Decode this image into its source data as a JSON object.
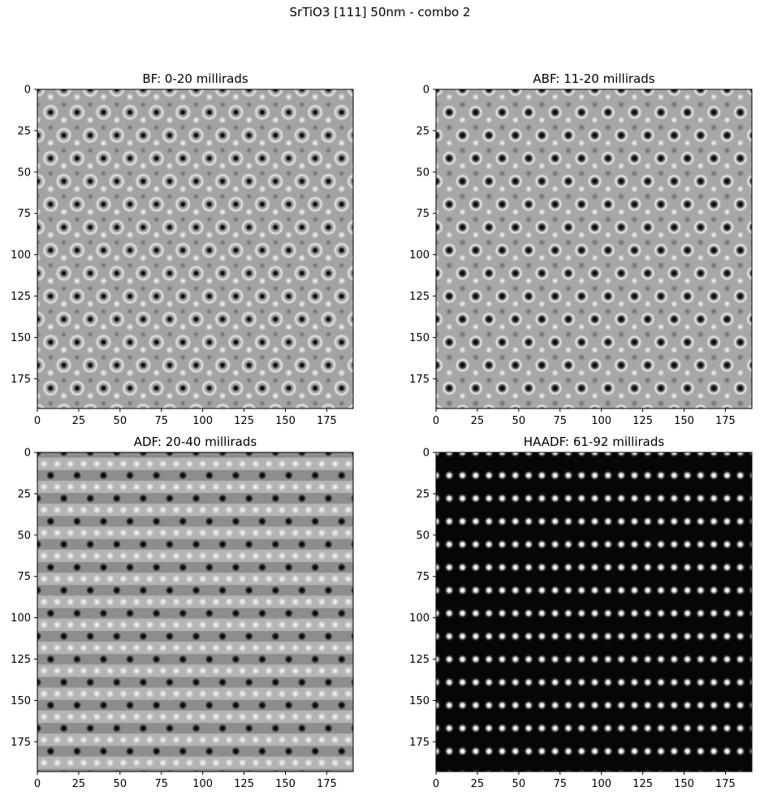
{
  "suptitle": "SrTiO3 [111] 50nm - combo 2",
  "chart_data": [
    {
      "type": "heatmap",
      "title": "BF: 0-20 millirads",
      "xlim": [
        0,
        191
      ],
      "ylim": [
        193,
        0
      ],
      "xticks": [
        0,
        25,
        50,
        75,
        100,
        125,
        150,
        175
      ],
      "yticks": [
        0,
        25,
        50,
        75,
        100,
        125,
        150,
        175
      ],
      "colormap": "grey",
      "pattern": "bf",
      "lattice_spacing": [
        16,
        13.9
      ]
    },
    {
      "type": "heatmap",
      "title": "ABF: 11-20 millirads",
      "xlim": [
        0,
        191
      ],
      "ylim": [
        193,
        0
      ],
      "xticks": [
        0,
        25,
        50,
        75,
        100,
        125,
        150,
        175
      ],
      "yticks": [
        0,
        25,
        50,
        75,
        100,
        125,
        150,
        175
      ],
      "colormap": "grey",
      "pattern": "abf",
      "lattice_spacing": [
        16,
        13.9
      ]
    },
    {
      "type": "heatmap",
      "title": "ADF: 20-40 millirads",
      "xlim": [
        0,
        191
      ],
      "ylim": [
        193,
        0
      ],
      "xticks": [
        0,
        25,
        50,
        75,
        100,
        125,
        150,
        175
      ],
      "yticks": [
        0,
        25,
        50,
        75,
        100,
        125,
        150,
        175
      ],
      "colormap": "grey",
      "pattern": "adf",
      "lattice_spacing": [
        16,
        13.9
      ]
    },
    {
      "type": "heatmap",
      "title": "HAADF: 61-92 millirads",
      "xlim": [
        0,
        191
      ],
      "ylim": [
        193,
        0
      ],
      "xticks": [
        0,
        25,
        50,
        75,
        100,
        125,
        150,
        175
      ],
      "yticks": [
        0,
        25,
        50,
        75,
        100,
        125,
        150,
        175
      ],
      "colormap": "grey",
      "pattern": "haadf",
      "lattice_spacing": [
        8,
        13.9
      ]
    }
  ]
}
